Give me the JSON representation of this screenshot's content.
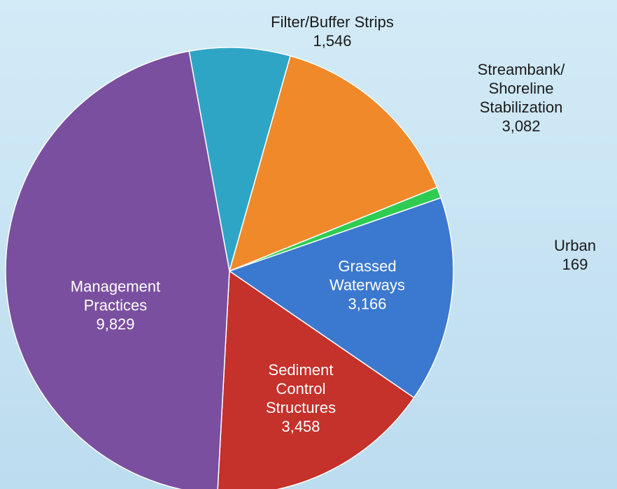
{
  "chart_data": {
    "type": "pie",
    "categories": [
      "Filter/Buffer Strips",
      "Streambank/ Shoreline Stabilization",
      "Urban",
      "Grassed Waterways",
      "Sediment Control Structures",
      "Management Practices"
    ],
    "values": [
      1546,
      3082,
      169,
      3166,
      3458,
      9829
    ],
    "value_labels": [
      "1,546",
      "3,082",
      "169",
      "3,166",
      "3,458",
      "9,829"
    ],
    "colors": [
      "#2fa5c6",
      "#f0892a",
      "#2fcc52",
      "#3b78cf",
      "#c5312b",
      "#7a4f9f"
    ]
  }
}
